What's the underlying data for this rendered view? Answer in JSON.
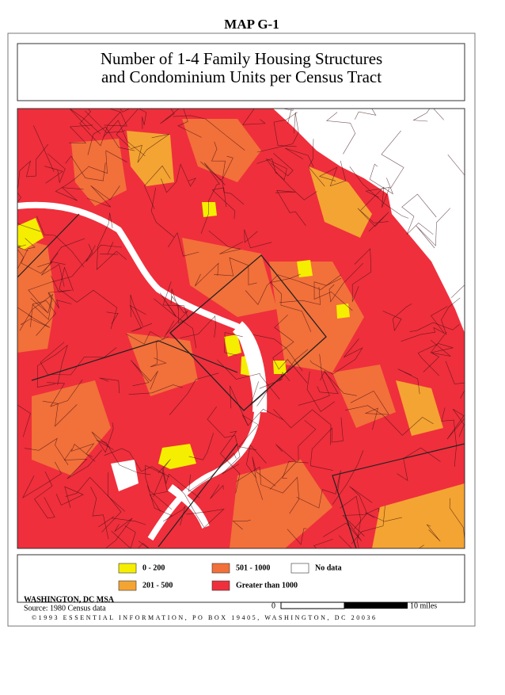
{
  "header": {
    "map_id": "MAP G-1",
    "title_lines": [
      "Number of 1-4 Family Housing Structures",
      "and Condominium Units per Census Tract"
    ]
  },
  "legend": {
    "items": [
      {
        "label": "0 - 200",
        "color": "#f5ee00"
      },
      {
        "label": "201 - 500",
        "color": "#f4a432"
      },
      {
        "label": "501 - 1000",
        "color": "#f2703a"
      },
      {
        "label": "Greater than 1000",
        "color": "#ef2f3c"
      },
      {
        "label": "No data",
        "color": "#ffffff"
      }
    ]
  },
  "footer": {
    "region": "WASHINGTON, DC MSA",
    "source": "Source: 1980 Census data",
    "scale_start": "0",
    "scale_end": "10 miles",
    "credit": "©1993 ESSENTIAL INFORMATION, PO BOX 19405, WASHINGTON, DC 20036"
  }
}
